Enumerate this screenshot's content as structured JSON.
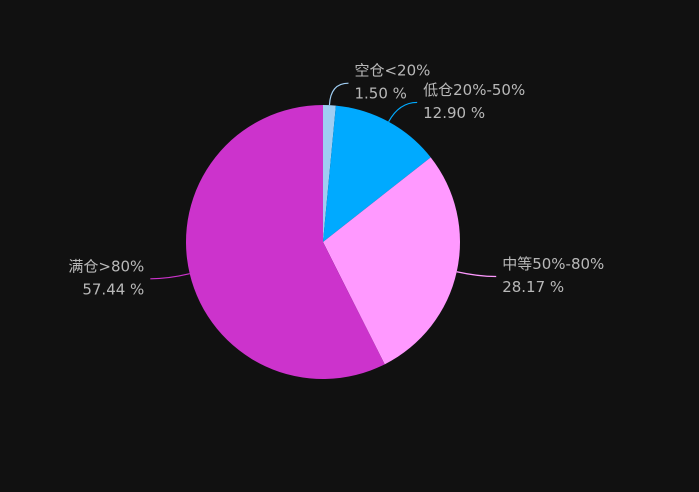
{
  "chart_data": {
    "type": "pie",
    "categories": [
      "空仓<20%",
      "低仓20%-50%",
      "中等50%-80%",
      "满仓>80%"
    ],
    "values": [
      1.5,
      12.9,
      28.17,
      57.44
    ],
    "value_labels": [
      "1.50 %",
      "12.90 %",
      "28.17 %",
      "57.44 %"
    ],
    "colors": [
      "#9fcdf2",
      "#00aaff",
      "#ff99ff",
      "#cc33cc"
    ]
  }
}
